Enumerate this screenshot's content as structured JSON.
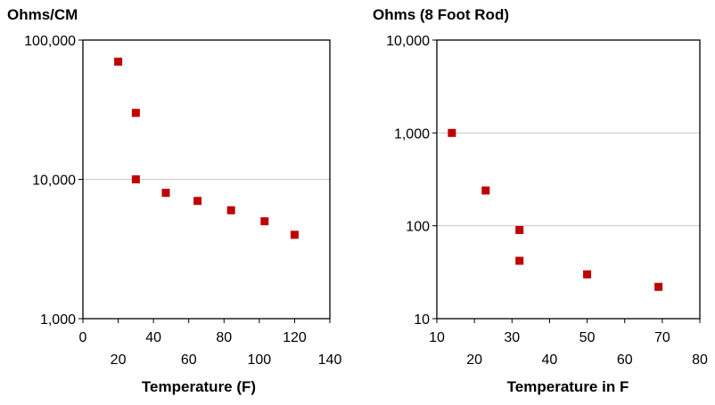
{
  "chart_data": [
    {
      "type": "scatter",
      "title": "Ohms/CM",
      "xlabel": "Temperature (F)",
      "ylabel": "",
      "yscale": "log",
      "xlim": [
        0,
        140
      ],
      "ylim": [
        1000,
        100000
      ],
      "x_ticks_upper": [
        "0",
        "40",
        "80",
        "120"
      ],
      "x_ticks_lower": [
        "20",
        "60",
        "100",
        "140"
      ],
      "y_ticks": [
        "1,000",
        "10,000",
        "100,000"
      ],
      "grid": "horizontal",
      "marker_color": "#c00000",
      "x": [
        20,
        30,
        30,
        47,
        65,
        84,
        103,
        120
      ],
      "y": [
        70000,
        30000,
        10000,
        8000,
        7000,
        6000,
        5000,
        4000
      ]
    },
    {
      "type": "scatter",
      "title": "Ohms (8 Foot Rod)",
      "xlabel": "Temperature in F",
      "ylabel": "",
      "yscale": "log",
      "xlim": [
        10,
        80
      ],
      "ylim": [
        10,
        10000
      ],
      "x_ticks_upper": [
        "10",
        "30",
        "50",
        "70"
      ],
      "x_ticks_lower": [
        "20",
        "40",
        "60",
        "80"
      ],
      "y_ticks": [
        "10",
        "100",
        "1,000",
        "10,000"
      ],
      "grid": "horizontal",
      "marker_color": "#c00000",
      "x": [
        14,
        23,
        32,
        32,
        50,
        69
      ],
      "y": [
        1000,
        240,
        90,
        42,
        30,
        22
      ]
    }
  ]
}
